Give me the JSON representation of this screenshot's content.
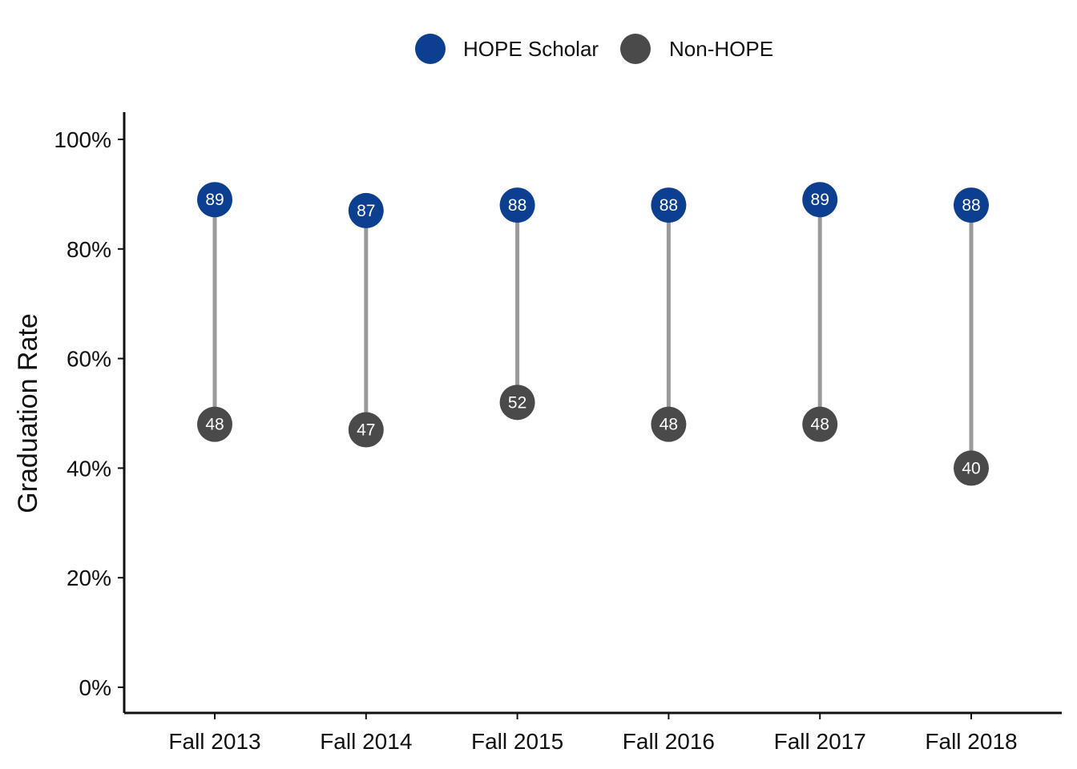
{
  "chart_data": {
    "type": "dumbbell",
    "categories": [
      "Fall 2013",
      "Fall 2014",
      "Fall 2015",
      "Fall 2016",
      "Fall 2017",
      "Fall 2018"
    ],
    "series": [
      {
        "name": "HOPE Scholar",
        "values": [
          89,
          87,
          88,
          88,
          89,
          88
        ],
        "color": "#0d3f91"
      },
      {
        "name": "Non-HOPE",
        "values": [
          48,
          47,
          52,
          48,
          48,
          40
        ],
        "color": "#4a4a4a"
      }
    ],
    "connector_color": "#9a9a9a",
    "ylabel": "Graduation Rate",
    "ylim": [
      0,
      100
    ],
    "y_ticks": [
      0,
      20,
      40,
      60,
      80,
      100
    ],
    "y_tick_labels": [
      "0%",
      "20%",
      "40%",
      "60%",
      "80%",
      "100%"
    ],
    "legend_position": "top-center",
    "grid": false
  }
}
